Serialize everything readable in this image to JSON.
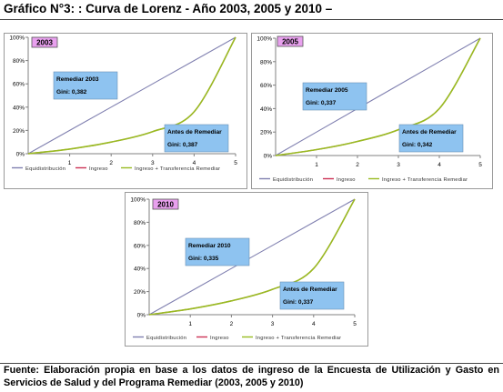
{
  "page": {
    "title": "Gráfico N°3: : Curva de Lorenz -  Año  2003, 2005 y 2010 –",
    "source": "Fuente: Elaboración propia en base a los datos de ingreso de la Encuesta de Utilización y Gasto en Servicios de Salud y del Programa Remediar (2003, 2005 y 2010)"
  },
  "colors": {
    "equidistribucion": "#8080b0",
    "ingreso": "#cc3355",
    "ingreso_transferencia": "#99bb22",
    "label_box": "#8ec3f0",
    "year_tag": "#e8a0ee",
    "axis": "#808080"
  },
  "chart_data": [
    {
      "type": "line",
      "title": "2003",
      "x": [
        0,
        1,
        2,
        3,
        4,
        5
      ],
      "x_ticks": [
        "1",
        "2",
        "3",
        "4",
        "5"
      ],
      "y_ticks": [
        "0%",
        "20%",
        "40%",
        "60%",
        "80%",
        "100%"
      ],
      "ylim": [
        0,
        100
      ],
      "legend_position": "bottom",
      "series": [
        {
          "name": "Equidistribución",
          "values": [
            0,
            20,
            40,
            60,
            80,
            100
          ]
        },
        {
          "name": "Ingreso",
          "values": [
            0,
            4,
            10,
            19,
            36,
            100
          ]
        },
        {
          "name": "Ingreso + Transferencia Remediar",
          "values": [
            0,
            4,
            10,
            19,
            36,
            100
          ]
        }
      ],
      "annotations": [
        {
          "label": "Remediar 2003",
          "gini": "Gini: 0,382"
        },
        {
          "label": "Antes de Remediar",
          "gini": "Gini: 0,387"
        }
      ]
    },
    {
      "type": "line",
      "title": "2005",
      "x": [
        0,
        1,
        2,
        3,
        4,
        5
      ],
      "x_ticks": [
        "1",
        "2",
        "3",
        "4",
        "5"
      ],
      "y_ticks": [
        "0%",
        "20%",
        "40%",
        "60%",
        "80%",
        "100%"
      ],
      "ylim": [
        0,
        100
      ],
      "legend_position": "bottom",
      "series": [
        {
          "name": "Equidistribución",
          "values": [
            0,
            20,
            40,
            60,
            80,
            100
          ]
        },
        {
          "name": "Ingreso",
          "values": [
            0,
            5,
            12,
            22,
            40,
            100
          ]
        },
        {
          "name": "Ingreso + Transferencia Remediar",
          "values": [
            0,
            5,
            12,
            22,
            40,
            100
          ]
        }
      ],
      "annotations": [
        {
          "label": "Remediar 2005",
          "gini": "Gini: 0,337"
        },
        {
          "label": "Antes de Remediar",
          "gini": "Gini: 0,342"
        }
      ]
    },
    {
      "type": "line",
      "title": "2010",
      "x": [
        0,
        1,
        2,
        3,
        4,
        5
      ],
      "x_ticks": [
        "1",
        "2",
        "3",
        "4",
        "5"
      ],
      "y_ticks": [
        "0%",
        "20%",
        "40%",
        "60%",
        "80%",
        "100%"
      ],
      "ylim": [
        0,
        100
      ],
      "legend_position": "bottom",
      "series": [
        {
          "name": "Equidistribución",
          "values": [
            0,
            20,
            40,
            60,
            80,
            100
          ]
        },
        {
          "name": "Ingreso",
          "values": [
            0,
            5,
            12,
            22,
            40,
            100
          ]
        },
        {
          "name": "Ingreso + Transferencia Remediar",
          "values": [
            0,
            5,
            12,
            22,
            40,
            100
          ]
        }
      ],
      "annotations": [
        {
          "label": "Remediar 2010",
          "gini": "Gini: 0,335"
        },
        {
          "label": "Antes de Remediar",
          "gini": "Gini: 0,337"
        }
      ]
    }
  ]
}
